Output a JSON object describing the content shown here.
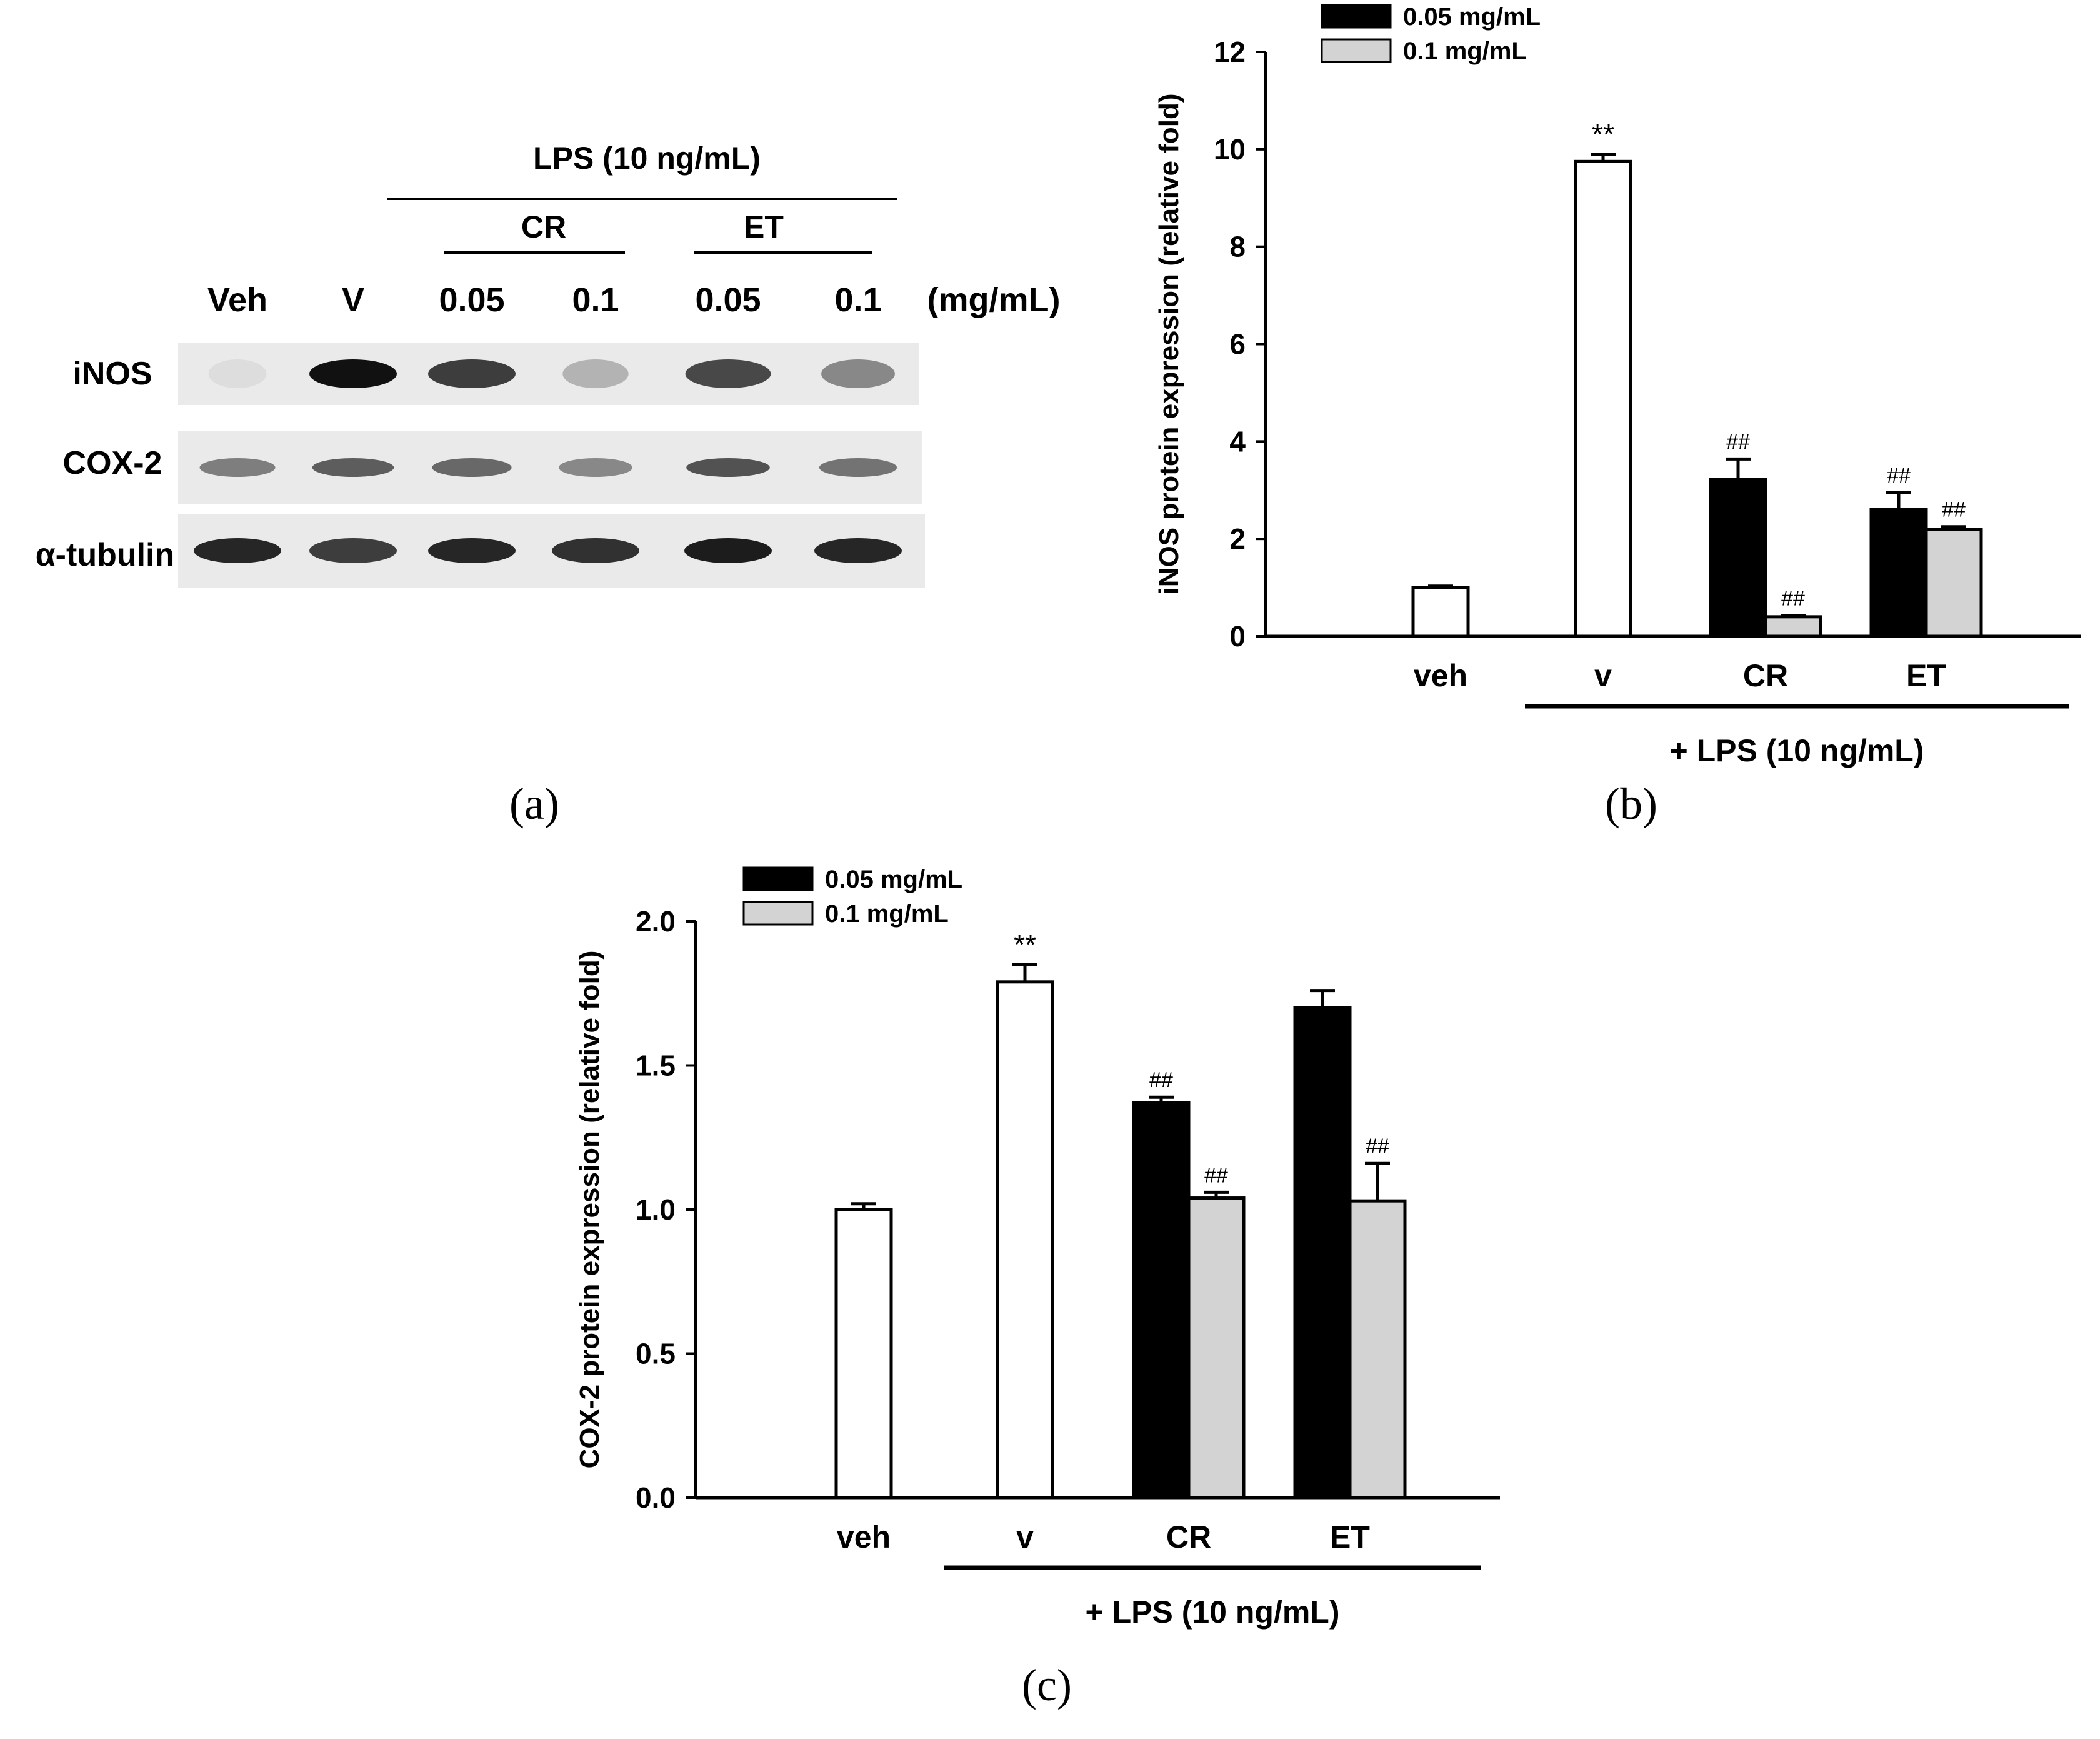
{
  "panel_a": {
    "label": "(a)",
    "lps_label": "LPS (10  ng/mL)",
    "group_labels": [
      "CR",
      "ET"
    ],
    "lane_labels": [
      "Veh",
      "V",
      "0.05",
      "0.1",
      "0.05",
      "0.1"
    ],
    "unit_label": "(mg/mL)",
    "row_labels": [
      "iNOS",
      "COX-2",
      "α-tubulin"
    ],
    "band_intensity": {
      "iNOS": [
        0.05,
        1.0,
        0.8,
        0.25,
        0.75,
        0.45
      ],
      "COX-2": [
        0.5,
        0.65,
        0.6,
        0.45,
        0.7,
        0.55
      ],
      "α-tubulin": [
        0.9,
        0.8,
        0.9,
        0.85,
        0.95,
        0.9
      ]
    },
    "band_color": "#111111",
    "blot_background": "#eaeaea"
  },
  "chart_data": [
    {
      "panel": "(b)",
      "type": "bar",
      "ylabel": "iNOS protein expression (relative fold)",
      "ylim": [
        0,
        12
      ],
      "yticks": [
        "0",
        "2",
        "4",
        "6",
        "8",
        "10",
        "12"
      ],
      "categories": [
        "veh",
        "v",
        "CR",
        "ET"
      ],
      "group_label": "+ LPS (10 ng/mL)",
      "legend": [
        "0.05 mg/mL",
        "0.1 mg/mL"
      ],
      "legend_position": "top-right",
      "bars": [
        {
          "category": "veh",
          "series": "control",
          "value": 1.0,
          "error": 0.03,
          "annotation": ""
        },
        {
          "category": "v",
          "series": "control",
          "value": 9.75,
          "error": 0.15,
          "annotation": "**"
        },
        {
          "category": "CR",
          "series": "0.05 mg/mL",
          "value": 3.22,
          "error": 0.42,
          "annotation": "##"
        },
        {
          "category": "CR",
          "series": "0.1 mg/mL",
          "value": 0.4,
          "error": 0.03,
          "annotation": "##"
        },
        {
          "category": "ET",
          "series": "0.05 mg/mL",
          "value": 2.6,
          "error": 0.35,
          "annotation": "##"
        },
        {
          "category": "ET",
          "series": "0.1 mg/mL",
          "value": 2.2,
          "error": 0.05,
          "annotation": "##"
        }
      ]
    },
    {
      "panel": "(c)",
      "type": "bar",
      "ylabel": "COX-2 protein expression (relative fold)",
      "ylim": [
        0,
        2.0
      ],
      "yticks": [
        "0.0",
        "0.5",
        "1.0",
        "1.5",
        "2.0"
      ],
      "categories": [
        "veh",
        "v",
        "CR",
        "ET"
      ],
      "group_label": "+ LPS (10 ng/mL)",
      "legend": [
        "0.05 mg/mL",
        "0.1 mg/mL"
      ],
      "legend_position": "top-left",
      "bars": [
        {
          "category": "veh",
          "series": "control",
          "value": 1.0,
          "error": 0.02,
          "annotation": ""
        },
        {
          "category": "v",
          "series": "control",
          "value": 1.79,
          "error": 0.06,
          "annotation": "**"
        },
        {
          "category": "CR",
          "series": "0.05 mg/mL",
          "value": 1.37,
          "error": 0.02,
          "annotation": "##"
        },
        {
          "category": "CR",
          "series": "0.1 mg/mL",
          "value": 1.04,
          "error": 0.02,
          "annotation": "##"
        },
        {
          "category": "ET",
          "series": "0.05 mg/mL",
          "value": 1.7,
          "error": 0.06,
          "annotation": ""
        },
        {
          "category": "ET",
          "series": "0.1 mg/mL",
          "value": 1.03,
          "error": 0.13,
          "annotation": "##"
        }
      ]
    }
  ],
  "colors": {
    "control": "#ffffff",
    "dose_low": "#000000",
    "dose_high": "#d3d3d3"
  }
}
